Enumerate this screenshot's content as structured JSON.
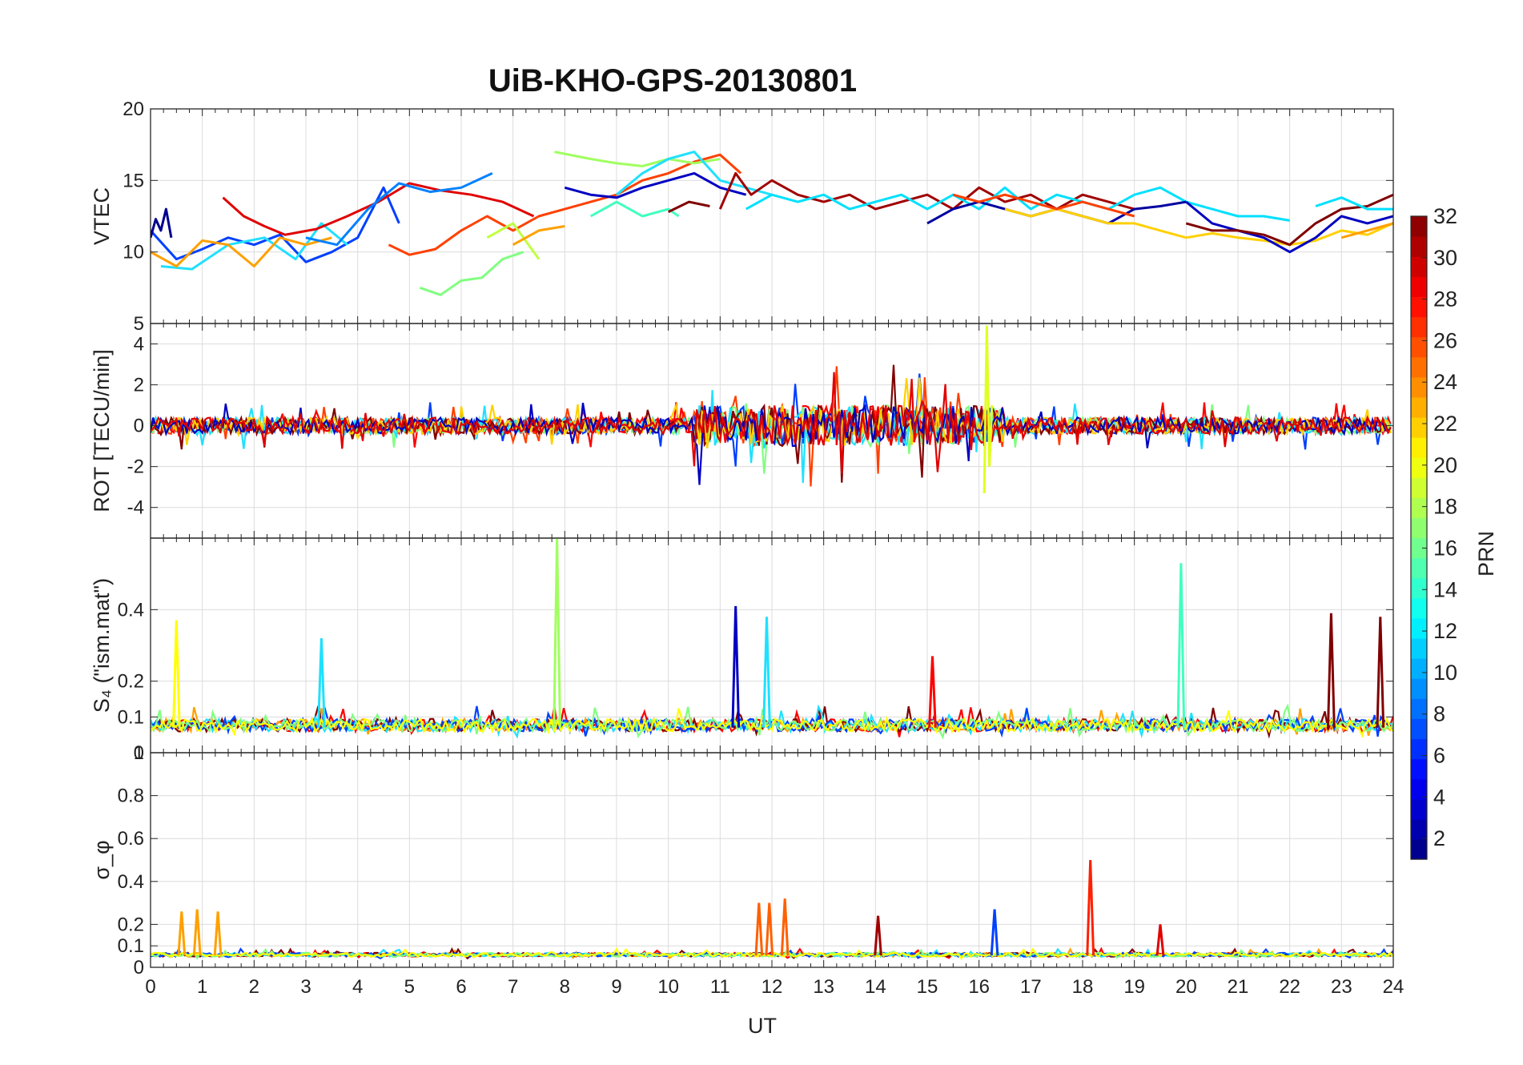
{
  "chart_data": {
    "type": "line",
    "title": "UiB-KHO-GPS-20130801",
    "xlabel": "UT",
    "xlim": [
      0,
      24
    ],
    "x_ticks": [
      "0",
      "1",
      "2",
      "3",
      "4",
      "5",
      "6",
      "7",
      "8",
      "9",
      "10",
      "11",
      "12",
      "13",
      "14",
      "15",
      "16",
      "17",
      "18",
      "19",
      "20",
      "21",
      "22",
      "23",
      "24"
    ],
    "colorbar": {
      "label": "PRN",
      "range": [
        1,
        32
      ],
      "colormap": "jet",
      "ticks": [
        "2",
        "4",
        "6",
        "8",
        "10",
        "12",
        "14",
        "16",
        "18",
        "20",
        "22",
        "24",
        "26",
        "28",
        "30",
        "32"
      ]
    },
    "panels": [
      {
        "ylabel": "VTEC",
        "ylim": [
          5,
          20
        ],
        "y_ticks": [
          "5",
          "10",
          "15",
          "20"
        ],
        "series": [
          {
            "color": "#0040FF",
            "x": [
              0,
              0.5,
              1,
              1.5,
              2,
              2.5,
              3,
              3.5,
              4,
              4.5,
              4.8
            ],
            "y": [
              11.5,
              9.5,
              10.2,
              11,
              10.5,
              11.2,
              9.3,
              10,
              11,
              14.5,
              12
            ]
          },
          {
            "color": "#000090",
            "x": [
              0,
              0.1,
              0.2,
              0.3,
              0.4
            ],
            "y": [
              11,
              12.3,
              11.5,
              13,
              11
            ]
          },
          {
            "color": "#20E0FF",
            "x": [
              0.2,
              0.8,
              1.5,
              2.2,
              2.8,
              3.3,
              3.8
            ],
            "y": [
              9,
              8.8,
              10.5,
              11,
              9.5,
              12,
              10.5
            ]
          },
          {
            "color": "#FFA000",
            "x": [
              0,
              0.5,
              1,
              1.5,
              2,
              2.5,
              3,
              3.5
            ],
            "y": [
              10,
              9,
              10.8,
              10.5,
              9,
              11,
              10.5,
              11
            ]
          },
          {
            "color": "#E00000",
            "x": [
              1.4,
              1.8,
              2.2,
              2.6,
              3.2,
              3.8,
              4.4,
              5,
              5.6,
              6.2,
              6.8,
              7.4
            ],
            "y": [
              13.8,
              12.5,
              11.8,
              11.2,
              11.6,
              12.5,
              13.5,
              14.8,
              14.3,
              14,
              13.5,
              12.5
            ]
          },
          {
            "color": "#0080FF",
            "x": [
              3,
              3.6,
              4.2,
              4.8,
              5.4,
              6,
              6.6
            ],
            "y": [
              11,
              10.5,
              13,
              14.8,
              14.2,
              14.5,
              15.5
            ]
          },
          {
            "color": "#FF4000",
            "x": [
              4.6,
              5,
              5.5,
              6,
              6.5,
              7,
              7.5,
              8,
              8.5,
              9,
              9.5,
              10,
              10.5,
              11,
              11.4
            ],
            "y": [
              10.5,
              9.8,
              10.2,
              11.5,
              12.5,
              11.5,
              12.5,
              13,
              13.5,
              14,
              15,
              15.5,
              16.3,
              16.8,
              15.5
            ]
          },
          {
            "color": "#80FF80",
            "x": [
              5.2,
              5.6,
              6,
              6.4,
              6.8,
              7.2
            ],
            "y": [
              7.5,
              7,
              8,
              8.2,
              9.5,
              10
            ]
          },
          {
            "color": "#C0FF40",
            "x": [
              6.5,
              7,
              7.5
            ],
            "y": [
              11,
              12,
              9.5
            ]
          },
          {
            "color": "#FFA000",
            "x": [
              7,
              7.5,
              8
            ],
            "y": [
              10.5,
              11.5,
              11.8
            ]
          },
          {
            "color": "#A0FF60",
            "x": [
              7.8,
              8.5,
              9,
              9.5,
              10,
              10.5,
              11
            ],
            "y": [
              17,
              16.5,
              16.2,
              16,
              16.5,
              16.2,
              16.5
            ]
          },
          {
            "color": "#40FFC0",
            "x": [
              8.5,
              9,
              9.5,
              10,
              10.2
            ],
            "y": [
              12.5,
              13.5,
              12.5,
              13,
              12.5
            ]
          },
          {
            "color": "#20E0FF",
            "x": [
              9,
              9.5,
              10,
              10.5,
              11,
              11.5,
              12
            ],
            "y": [
              14,
              15.5,
              16.5,
              17,
              15,
              14.5,
              14
            ]
          },
          {
            "color": "#0000C0",
            "x": [
              8,
              8.5,
              9,
              9.5,
              10,
              10.5,
              11,
              11.5
            ],
            "y": [
              14.5,
              14,
              13.8,
              14.5,
              15,
              15.5,
              14.5,
              14
            ]
          },
          {
            "color": "#800000",
            "x": [
              10,
              10.4,
              10.8
            ],
            "y": [
              12.8,
              13.5,
              13.2
            ]
          },
          {
            "color": "#A00000",
            "x": [
              11,
              11.3,
              11.6,
              12,
              12.5,
              13,
              13.5,
              14,
              14.5,
              15,
              15.5,
              16,
              16.5,
              17,
              17.5,
              18,
              18.5,
              19
            ],
            "y": [
              13,
              15.5,
              14,
              15,
              14,
              13.5,
              14,
              13,
              13.5,
              14,
              13,
              14.5,
              13.5,
              14,
              13,
              14,
              13.5,
              13
            ]
          },
          {
            "color": "#00E0FF",
            "x": [
              11.5,
              12,
              12.5,
              13,
              13.5,
              14,
              14.5,
              15,
              15.5,
              16,
              16.5,
              17,
              17.5,
              18,
              18.5,
              19,
              19.5,
              20,
              20.5,
              21,
              21.5,
              22
            ],
            "y": [
              13,
              14,
              13.5,
              14,
              13,
              13.5,
              14,
              13,
              14,
              13,
              14.5,
              13,
              14,
              13.5,
              13,
              14,
              14.5,
              13.5,
              13,
              12.5,
              12.5,
              12.2
            ]
          },
          {
            "color": "#0000A0",
            "x": [
              15,
              15.5,
              16,
              16.5,
              17,
              17.5,
              18,
              18.5,
              19,
              19.5,
              20
            ],
            "y": [
              12,
              13,
              13.5,
              13,
              12.5,
              13,
              12.5,
              12,
              13,
              13.2,
              13.5
            ]
          },
          {
            "color": "#FFD000",
            "x": [
              16.5,
              17,
              17.5,
              18,
              18.5,
              19,
              19.5,
              20,
              20.5,
              21,
              21.5,
              22,
              22.5,
              23,
              23.5,
              24
            ],
            "y": [
              13,
              12.5,
              13,
              12.5,
              12,
              12,
              11.5,
              11,
              11.3,
              11,
              10.8,
              10.5,
              10.8,
              11.5,
              11.2,
              12
            ]
          },
          {
            "color": "#FF4000",
            "x": [
              15.5,
              16,
              16.5,
              17,
              17.5,
              18,
              18.5,
              19
            ],
            "y": [
              14,
              13.5,
              14,
              13.5,
              13,
              13.5,
              13,
              12.5
            ]
          },
          {
            "color": "#0000C0",
            "x": [
              20,
              20.5,
              21,
              21.5,
              22,
              22.5,
              23,
              23.5,
              24
            ],
            "y": [
              13.5,
              12,
              11.5,
              11,
              10,
              11,
              12.5,
              12,
              12.5
            ]
          },
          {
            "color": "#800000",
            "x": [
              20,
              20.5,
              21,
              21.5,
              22,
              22.5,
              23,
              23.5,
              24
            ],
            "y": [
              12,
              11.5,
              11.5,
              11.2,
              10.5,
              12,
              13,
              13.2,
              14
            ]
          },
          {
            "color": "#00E0FF",
            "x": [
              22.5,
              23,
              23.5,
              24
            ],
            "y": [
              13.2,
              13.8,
              13,
              13
            ]
          },
          {
            "color": "#FFA000",
            "x": [
              23,
              23.5,
              24
            ],
            "y": [
              11,
              11.5,
              12
            ]
          }
        ]
      },
      {
        "ylabel": "ROT [TECU/min]",
        "ylim": [
          -5.5,
          5
        ],
        "y_ticks": [
          "-4",
          "-2",
          "0",
          "2",
          "4"
        ]
      },
      {
        "ylabel": "S₄ (\"ism.mat\")",
        "ylim": [
          0,
          0.6
        ],
        "y_ticks": [
          "0",
          "0.1",
          "0.2",
          "0.4"
        ],
        "spikes": [
          {
            "color": "#FFFF00",
            "x": 0.5,
            "y": 0.37
          },
          {
            "color": "#20E0FF",
            "x": 3.3,
            "y": 0.32
          },
          {
            "color": "#A0FF60",
            "x": 7.85,
            "y": 0.6
          },
          {
            "color": "#0000C0",
            "x": 11.3,
            "y": 0.41
          },
          {
            "color": "#20E0FF",
            "x": 11.9,
            "y": 0.38
          },
          {
            "color": "#FF0000",
            "x": 15.1,
            "y": 0.27
          },
          {
            "color": "#40FFC0",
            "x": 19.9,
            "y": 0.53
          },
          {
            "color": "#800000",
            "x": 22.8,
            "y": 0.39
          },
          {
            "color": "#800000",
            "x": 23.75,
            "y": 0.38
          }
        ]
      },
      {
        "ylabel": "σ_φ",
        "ylim": [
          0,
          1
        ],
        "y_ticks": [
          "0",
          "0.1",
          "0.2",
          "0.4",
          "0.6",
          "0.8",
          "1"
        ],
        "spikes": [
          {
            "color": "#FFA000",
            "x": 0.6,
            "y": 0.26
          },
          {
            "color": "#FFA000",
            "x": 0.9,
            "y": 0.27
          },
          {
            "color": "#FFA000",
            "x": 1.3,
            "y": 0.26
          },
          {
            "color": "#FF6000",
            "x": 11.75,
            "y": 0.3
          },
          {
            "color": "#FF6000",
            "x": 11.95,
            "y": 0.3
          },
          {
            "color": "#FF6000",
            "x": 12.25,
            "y": 0.32
          },
          {
            "color": "#A00000",
            "x": 14.05,
            "y": 0.24
          },
          {
            "color": "#0040FF",
            "x": 16.3,
            "y": 0.27
          },
          {
            "color": "#FF2000",
            "x": 18.15,
            "y": 0.5
          },
          {
            "color": "#E00000",
            "x": 19.5,
            "y": 0.2
          }
        ]
      }
    ]
  }
}
